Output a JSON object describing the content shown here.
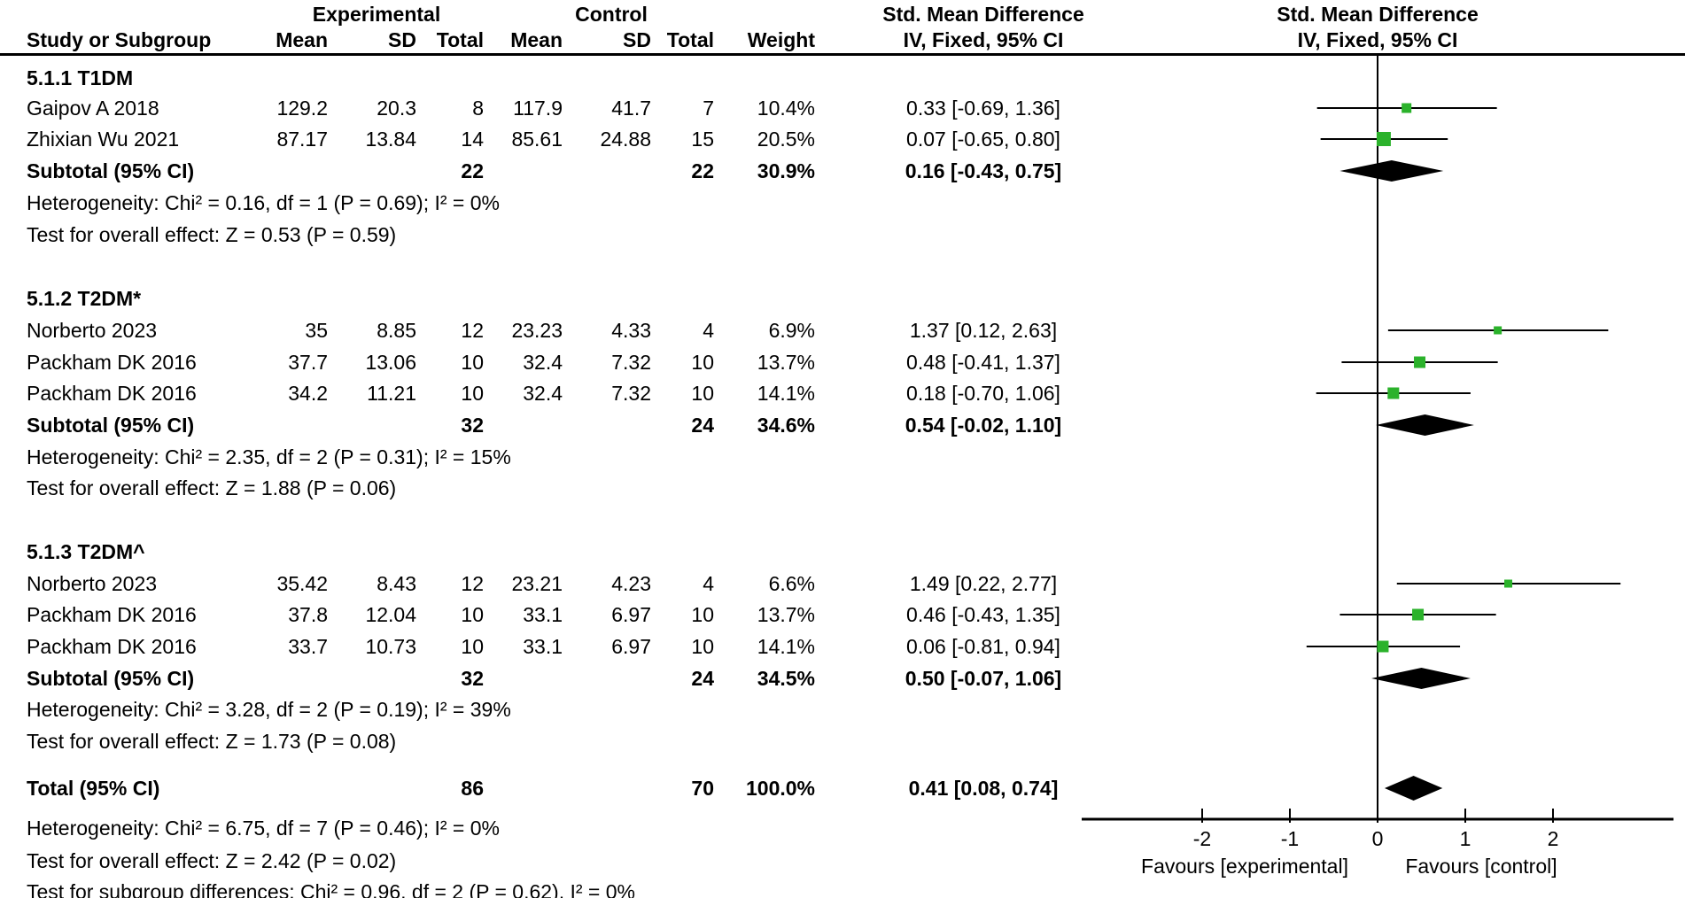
{
  "header": {
    "experimental": "Experimental",
    "control": "Control",
    "smd": "Std. Mean Difference",
    "method": "IV, Fixed, 95% CI",
    "study": "Study or Subgroup",
    "mean": "Mean",
    "sd": "SD",
    "total": "Total",
    "weight": "Weight"
  },
  "sections": [
    {
      "title": "5.1.1 T1DM",
      "studies": [
        {
          "name": "Gaipov A 2018",
          "mean_e": "129.2",
          "sd_e": "20.3",
          "total_e": "8",
          "mean_c": "117.9",
          "sd_c": "41.7",
          "total_c": "7",
          "weight": "10.4%",
          "ci": "0.33 [-0.69, 1.36]"
        },
        {
          "name": "Zhixian Wu 2021",
          "mean_e": "87.17",
          "sd_e": "13.84",
          "total_e": "14",
          "mean_c": "85.61",
          "sd_c": "24.88",
          "total_c": "15",
          "weight": "20.5%",
          "ci": "0.07 [-0.65, 0.80]"
        }
      ],
      "subtotal": {
        "label": "Subtotal (95% CI)",
        "total_e": "22",
        "total_c": "22",
        "weight": "30.9%",
        "ci": "0.16 [-0.43, 0.75]"
      },
      "heterogeneity": "Heterogeneity: Chi² = 0.16, df = 1 (P = 0.69); I² = 0%",
      "overall_effect": "Test for overall effect: Z = 0.53 (P = 0.59)"
    },
    {
      "title": "5.1.2 T2DM*",
      "studies": [
        {
          "name": "Norberto 2023",
          "mean_e": "35",
          "sd_e": "8.85",
          "total_e": "12",
          "mean_c": "23.23",
          "sd_c": "4.33",
          "total_c": "4",
          "weight": "6.9%",
          "ci": "1.37 [0.12, 2.63]"
        },
        {
          "name": "Packham DK 2016",
          "mean_e": "37.7",
          "sd_e": "13.06",
          "total_e": "10",
          "mean_c": "32.4",
          "sd_c": "7.32",
          "total_c": "10",
          "weight": "13.7%",
          "ci": "0.48 [-0.41, 1.37]"
        },
        {
          "name": "Packham DK 2016",
          "mean_e": "34.2",
          "sd_e": "11.21",
          "total_e": "10",
          "mean_c": "32.4",
          "sd_c": "7.32",
          "total_c": "10",
          "weight": "14.1%",
          "ci": "0.18 [-0.70, 1.06]"
        }
      ],
      "subtotal": {
        "label": "Subtotal (95% CI)",
        "total_e": "32",
        "total_c": "24",
        "weight": "34.6%",
        "ci": "0.54 [-0.02, 1.10]"
      },
      "heterogeneity": "Heterogeneity: Chi² = 2.35, df = 2 (P = 0.31); I² = 15%",
      "overall_effect": "Test for overall effect: Z = 1.88 (P = 0.06)"
    },
    {
      "title": "5.1.3 T2DM^",
      "studies": [
        {
          "name": "Norberto 2023",
          "mean_e": "35.42",
          "sd_e": "8.43",
          "total_e": "12",
          "mean_c": "23.21",
          "sd_c": "4.23",
          "total_c": "4",
          "weight": "6.6%",
          "ci": "1.49 [0.22, 2.77]"
        },
        {
          "name": "Packham DK 2016",
          "mean_e": "37.8",
          "sd_e": "12.04",
          "total_e": "10",
          "mean_c": "33.1",
          "sd_c": "6.97",
          "total_c": "10",
          "weight": "13.7%",
          "ci": "0.46 [-0.43, 1.35]"
        },
        {
          "name": "Packham DK 2016",
          "mean_e": "33.7",
          "sd_e": "10.73",
          "total_e": "10",
          "mean_c": "33.1",
          "sd_c": "6.97",
          "total_c": "10",
          "weight": "14.1%",
          "ci": "0.06 [-0.81, 0.94]"
        }
      ],
      "subtotal": {
        "label": "Subtotal (95% CI)",
        "total_e": "32",
        "total_c": "24",
        "weight": "34.5%",
        "ci": "0.50 [-0.07, 1.06]"
      },
      "heterogeneity": "Heterogeneity: Chi² = 3.28, df = 2 (P = 0.19); I² = 39%",
      "overall_effect": "Test for overall effect: Z = 1.73 (P = 0.08)"
    }
  ],
  "total_row": {
    "label": "Total (95% CI)",
    "total_e": "86",
    "total_c": "70",
    "weight": "100.0%",
    "ci": "0.41 [0.08, 0.74]"
  },
  "footer": {
    "heterogeneity": "Heterogeneity: Chi² = 6.75, df = 7 (P = 0.46); I² = 0%",
    "overall_effect": "Test for overall effect: Z = 2.42 (P = 0.02)",
    "subgroup_diff": "Test for subgroup differences: Chi² = 0.96, df = 2 (P = 0.62), I² = 0%"
  },
  "colors": {
    "marker_green": "#2BB22B",
    "line_black": "#000000"
  },
  "chart_data": {
    "type": "scatter",
    "variant": "forest_plot",
    "title": "Std. Mean Difference",
    "method_label": "IV, Fixed, 95% CI",
    "xlim": [
      -3.3,
      3.3
    ],
    "ticks": [
      "-2",
      "-1",
      "0",
      "1",
      "2"
    ],
    "tick_values": [
      -2,
      -1,
      0,
      1,
      2
    ],
    "favours_left": "Favours [experimental]",
    "favours_right": "Favours [control]",
    "studies": [
      {
        "group": "5.1.1 T1DM",
        "study": "Gaipov A 2018",
        "est": 0.33,
        "lo": -0.69,
        "hi": 1.36,
        "weight": 10.4
      },
      {
        "group": "5.1.1 T1DM",
        "study": "Zhixian Wu 2021",
        "est": 0.07,
        "lo": -0.65,
        "hi": 0.8,
        "weight": 20.5
      },
      {
        "group": "5.1.2 T2DM*",
        "study": "Norberto 2023",
        "est": 1.37,
        "lo": 0.12,
        "hi": 2.63,
        "weight": 6.9
      },
      {
        "group": "5.1.2 T2DM*",
        "study": "Packham DK 2016",
        "est": 0.48,
        "lo": -0.41,
        "hi": 1.37,
        "weight": 13.7
      },
      {
        "group": "5.1.2 T2DM*",
        "study": "Packham DK 2016",
        "est": 0.18,
        "lo": -0.7,
        "hi": 1.06,
        "weight": 14.1
      },
      {
        "group": "5.1.3 T2DM^",
        "study": "Norberto 2023",
        "est": 1.49,
        "lo": 0.22,
        "hi": 2.77,
        "weight": 6.6
      },
      {
        "group": "5.1.3 T2DM^",
        "study": "Packham DK 2016",
        "est": 0.46,
        "lo": -0.43,
        "hi": 1.35,
        "weight": 13.7
      },
      {
        "group": "5.1.3 T2DM^",
        "study": "Packham DK 2016",
        "est": 0.06,
        "lo": -0.81,
        "hi": 0.94,
        "weight": 14.1
      }
    ],
    "subtotals": [
      {
        "group": "5.1.1 T1DM",
        "est": 0.16,
        "lo": -0.43,
        "hi": 0.75
      },
      {
        "group": "5.1.2 T2DM*",
        "est": 0.54,
        "lo": -0.02,
        "hi": 1.1
      },
      {
        "group": "5.1.3 T2DM^",
        "est": 0.5,
        "lo": -0.07,
        "hi": 1.06
      }
    ],
    "total": {
      "est": 0.41,
      "lo": 0.08,
      "hi": 0.74
    }
  }
}
